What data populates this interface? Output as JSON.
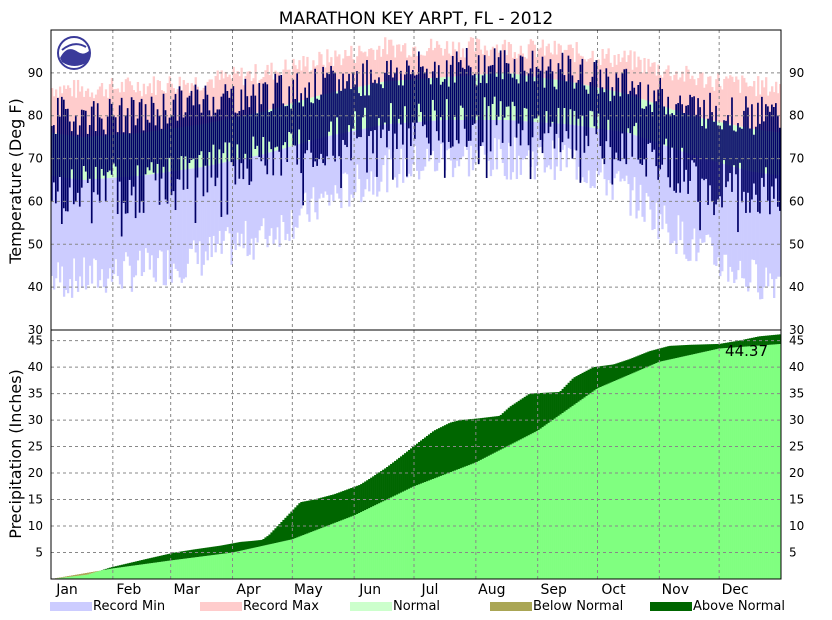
{
  "chart_data": {
    "title": "MARATHON KEY ARPT, FL - 2012",
    "colors": {
      "record_min": "#ccccff",
      "record_max": "#ffcccc",
      "normal": "#ccffcc",
      "observed": "#000066",
      "below_normal": "#aaa655",
      "above_normal": "#006600",
      "normal_precip": "#80ff80"
    },
    "months": [
      "Jan",
      "Feb",
      "Mar",
      "Apr",
      "May",
      "Jun",
      "Jul",
      "Aug",
      "Sep",
      "Oct",
      "Nov",
      "Dec"
    ],
    "temperature": {
      "type": "area",
      "ylabel": "Temperature (Deg F)",
      "ylim": [
        30,
        100
      ],
      "ticks": [
        30,
        40,
        50,
        60,
        70,
        80,
        90
      ],
      "grid": true,
      "monthly": {
        "record_max": [
          86,
          87,
          88,
          90,
          93,
          96,
          96,
          96,
          95,
          93,
          89,
          87
        ],
        "normal_max": [
          75,
          76,
          78,
          81,
          85,
          88,
          89,
          90,
          88,
          85,
          80,
          77
        ],
        "normal_min": [
          65,
          66,
          68,
          71,
          75,
          78,
          79,
          79,
          78,
          76,
          71,
          67
        ],
        "record_min": [
          42,
          44,
          47,
          52,
          60,
          67,
          70,
          70,
          70,
          62,
          50,
          42
        ],
        "observed_max": [
          80,
          80,
          84,
          85,
          87,
          90,
          91,
          92,
          90,
          87,
          82,
          80
        ],
        "observed_min": [
          63,
          63,
          67,
          70,
          74,
          77,
          78,
          79,
          77,
          74,
          66,
          63
        ]
      },
      "legend": [
        {
          "key": "record_min",
          "label": "Record Min"
        },
        {
          "key": "record_max",
          "label": "Record Max"
        },
        {
          "key": "normal",
          "label": "Normal"
        }
      ]
    },
    "precipitation": {
      "type": "area",
      "ylabel": "Precipitation (Inches)",
      "ylim": [
        0,
        47
      ],
      "ticks": [
        5,
        10,
        15,
        20,
        25,
        30,
        35,
        40,
        45
      ],
      "grid": true,
      "total_label": "44.37",
      "normal_cumulative": {
        "day": [
          0,
          31,
          60,
          91,
          121,
          152,
          182,
          213,
          244,
          274,
          305,
          335,
          366
        ],
        "inches": [
          0,
          2.0,
          3.5,
          5.0,
          7.5,
          12.0,
          17.5,
          22.0,
          28.0,
          36.0,
          41.0,
          43.5,
          44.37
        ]
      },
      "observed_cumulative": {
        "day": [
          0,
          18,
          30,
          48,
          62,
          72,
          85,
          95,
          101,
          106,
          108,
          109,
          125,
          132,
          142,
          155,
          160,
          168,
          175,
          180,
          185,
          192,
          200,
          205,
          214,
          225,
          230,
          240,
          255,
          262,
          272,
          282,
          290,
          300,
          310,
          320,
          335,
          345,
          355,
          366
        ],
        "inches": [
          0,
          0.8,
          2.2,
          3.8,
          5.0,
          5.6,
          6.3,
          7.0,
          7.2,
          7.4,
          8.0,
          8.2,
          14.5,
          15.0,
          16.0,
          17.8,
          19.0,
          21.0,
          23.0,
          24.5,
          26.0,
          28.0,
          29.5,
          30.0,
          30.3,
          30.8,
          32.5,
          35.0,
          35.3,
          38.0,
          40.0,
          40.5,
          41.5,
          43.0,
          44.0,
          44.2,
          44.37,
          45.0,
          45.8,
          46.2
        ]
      },
      "legend": [
        {
          "key": "below_normal",
          "label": "Below Normal"
        },
        {
          "key": "above_normal",
          "label": "Above Normal"
        }
      ]
    }
  }
}
